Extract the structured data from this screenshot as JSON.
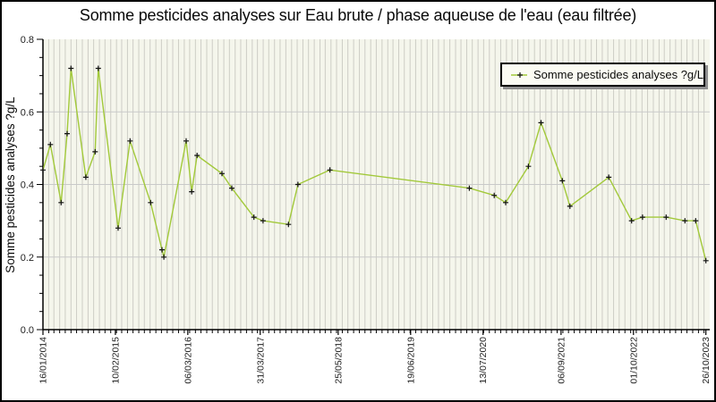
{
  "title": "Somme pesticides analyses sur Eau brute / phase aqueuse de l'eau (eau filtrée)",
  "legend": {
    "label": "Somme pesticides analyses ?g/L"
  },
  "y_axis": {
    "label": "Somme pesticides analyses ?g/L"
  },
  "colors": {
    "line": "#a2c93a",
    "marker": "#111111",
    "plot_bg": "#f5f6ec",
    "grid_vertical": "#cdcdc5",
    "grid_horizontal": "#c9c9c9",
    "axis": "#000000",
    "tick_text": "#222222",
    "legend_shadow": "#8f8f8f"
  },
  "chart_data": {
    "type": "line",
    "title": "Somme pesticides analyses sur Eau brute / phase aqueuse de l'eau (eau filtrée)",
    "xlabel": "",
    "ylabel": "Somme pesticides analyses ?g/L",
    "ylim": [
      0,
      0.8
    ],
    "y_ticks": [
      0.0,
      0.2,
      0.4,
      0.6,
      0.8
    ],
    "y_minor_step": 0.05,
    "x_ticks": [
      "16/01/2014",
      "10/02/2015",
      "06/03/2016",
      "31/03/2017",
      "25/05/2018",
      "19/06/2019",
      "13/07/2020",
      "06/09/2021",
      "01/10/2022",
      "26/10/2023"
    ],
    "grid": {
      "vertical": "monthly",
      "horizontal_at": [
        0.2,
        0.4,
        0.6
      ]
    },
    "legend_position": "top-right",
    "series": [
      {
        "name": "Somme pesticides analyses ?g/L",
        "marker": "plus",
        "points": [
          {
            "date": "16/01/2014",
            "value": 0.44
          },
          {
            "date": "25/02/2014",
            "value": 0.51
          },
          {
            "date": "24/04/2014",
            "value": 0.35
          },
          {
            "date": "26/05/2014",
            "value": 0.54
          },
          {
            "date": "16/06/2014",
            "value": 0.72
          },
          {
            "date": "04/09/2014",
            "value": 0.42
          },
          {
            "date": "24/10/2014",
            "value": 0.49
          },
          {
            "date": "10/11/2014",
            "value": 0.72
          },
          {
            "date": "25/02/2015",
            "value": 0.28
          },
          {
            "date": "30/04/2015",
            "value": 0.52
          },
          {
            "date": "19/08/2015",
            "value": 0.35
          },
          {
            "date": "19/10/2015",
            "value": 0.22
          },
          {
            "date": "29/10/2015",
            "value": 0.2
          },
          {
            "date": "26/02/2016",
            "value": 0.52
          },
          {
            "date": "27/03/2016",
            "value": 0.38
          },
          {
            "date": "25/04/2016",
            "value": 0.48
          },
          {
            "date": "06/09/2016",
            "value": 0.43
          },
          {
            "date": "29/10/2016",
            "value": 0.39
          },
          {
            "date": "25/02/2017",
            "value": 0.31
          },
          {
            "date": "15/04/2017",
            "value": 0.3
          },
          {
            "date": "30/08/2017",
            "value": 0.29
          },
          {
            "date": "20/10/2017",
            "value": 0.4
          },
          {
            "date": "10/04/2018",
            "value": 0.44
          },
          {
            "date": "30/04/2020",
            "value": 0.39
          },
          {
            "date": "11/09/2020",
            "value": 0.37
          },
          {
            "date": "12/11/2020",
            "value": 0.35
          },
          {
            "date": "14/03/2021",
            "value": 0.45
          },
          {
            "date": "21/05/2021",
            "value": 0.57
          },
          {
            "date": "13/09/2021",
            "value": 0.41
          },
          {
            "date": "24/10/2021",
            "value": 0.34
          },
          {
            "date": "21/05/2022",
            "value": 0.42
          },
          {
            "date": "21/09/2022",
            "value": 0.3
          },
          {
            "date": "19/11/2022",
            "value": 0.31
          },
          {
            "date": "26/03/2023",
            "value": 0.31
          },
          {
            "date": "05/07/2023",
            "value": 0.3
          },
          {
            "date": "01/09/2023",
            "value": 0.3
          },
          {
            "date": "26/10/2023",
            "value": 0.19
          }
        ]
      }
    ]
  }
}
